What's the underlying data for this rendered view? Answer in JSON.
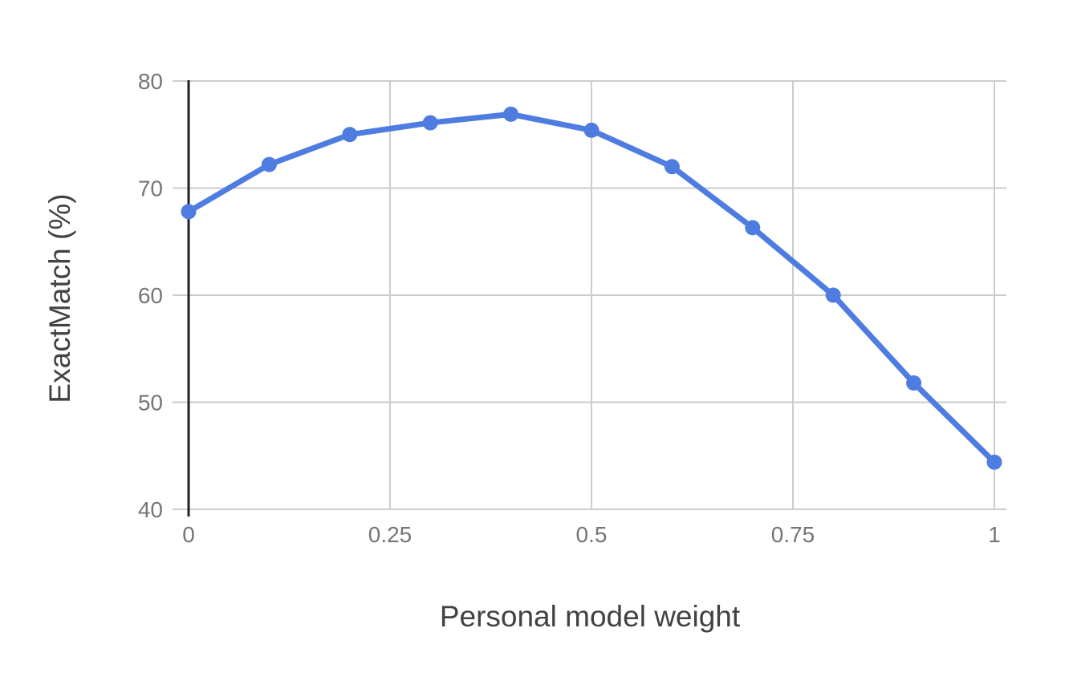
{
  "chart_data": {
    "type": "line",
    "title": "",
    "xlabel": "Personal model weight",
    "ylabel": "ExactMatch (%)",
    "x": [
      0,
      0.1,
      0.2,
      0.3,
      0.4,
      0.5,
      0.6,
      0.7,
      0.8,
      0.9,
      1
    ],
    "series": [
      {
        "name": "ExactMatch (%)",
        "values": [
          67.8,
          72.2,
          75.0,
          76.1,
          76.9,
          75.4,
          72.0,
          66.3,
          60.0,
          51.8,
          44.4
        ]
      }
    ],
    "xlim": [
      0,
      1
    ],
    "ylim": [
      40,
      80
    ],
    "x_ticks": [
      0,
      0.25,
      0.5,
      0.75,
      1
    ],
    "x_tick_labels": [
      "0",
      "0.25",
      "0.5",
      "0.75",
      "1"
    ],
    "y_ticks": [
      40,
      50,
      60,
      70,
      80
    ],
    "y_tick_labels": [
      "40",
      "50",
      "60",
      "70",
      "80"
    ],
    "grid": true,
    "legend_position": "none",
    "marker": "circle",
    "colors": {
      "series_line": "#4e7ce0",
      "gridline": "#cccccc",
      "baseline_axis": "#212121",
      "tick_label": "#757575",
      "axis_title": "#424242",
      "background": "#ffffff"
    }
  }
}
